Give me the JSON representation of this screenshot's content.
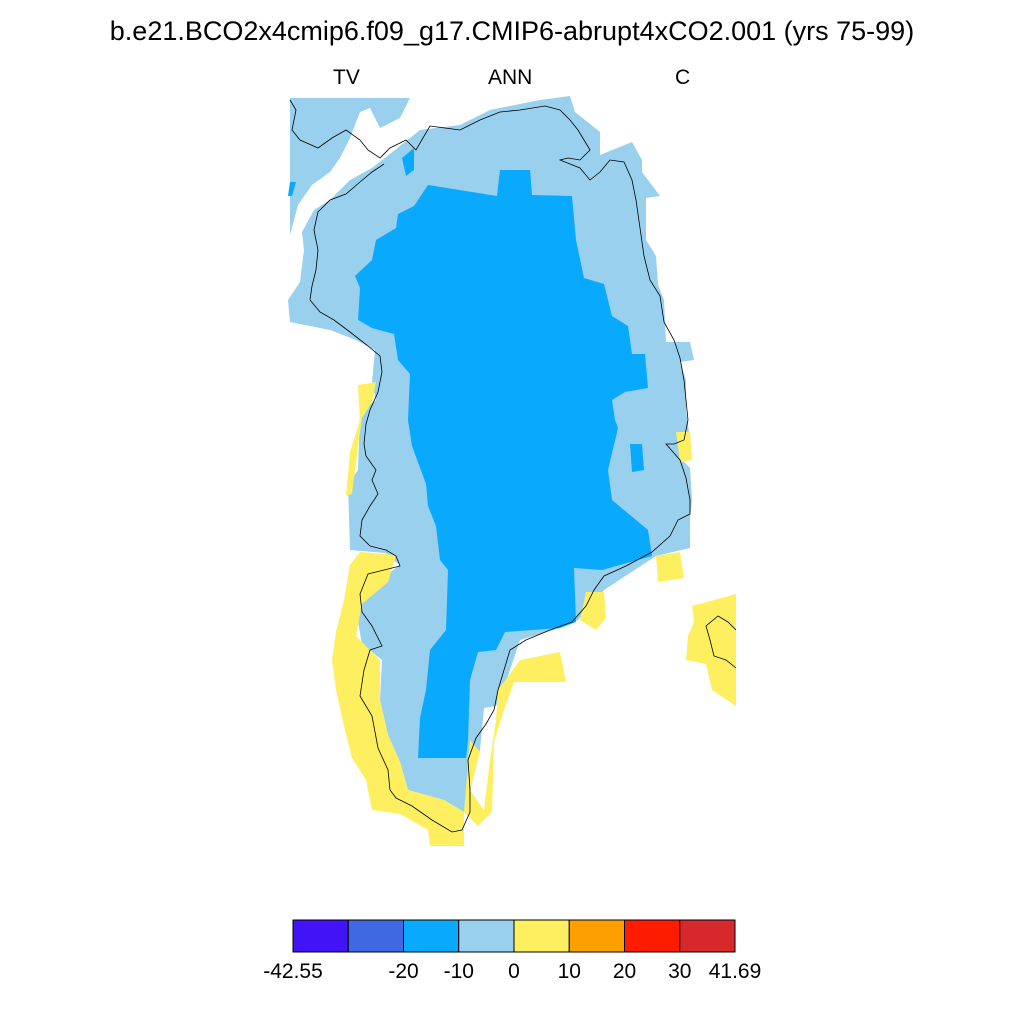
{
  "title": "b.e21.BCO2x4cmip6.f09_g17.CMIP6-abrupt4xCO2.001 (yrs 75-99)",
  "subtitles": {
    "left": "TV",
    "center": "ANN",
    "right": "C"
  },
  "legend": {
    "colors": [
      "#4313f7",
      "#3e69e2",
      "#09a9fd",
      "#98d0ee",
      "#fdef60",
      "#fe9f00",
      "#fd1c00",
      "#d7292c"
    ],
    "labels": [
      "-42.55",
      "-20",
      "-10",
      "0",
      "10",
      "20",
      "30",
      "41.69"
    ]
  },
  "map_colors": {
    "moderate_cooling": "#09a9fd",
    "slight_cooling": "#98d0ee",
    "slight_warming": "#fdef60",
    "coastline": "#000000"
  }
}
